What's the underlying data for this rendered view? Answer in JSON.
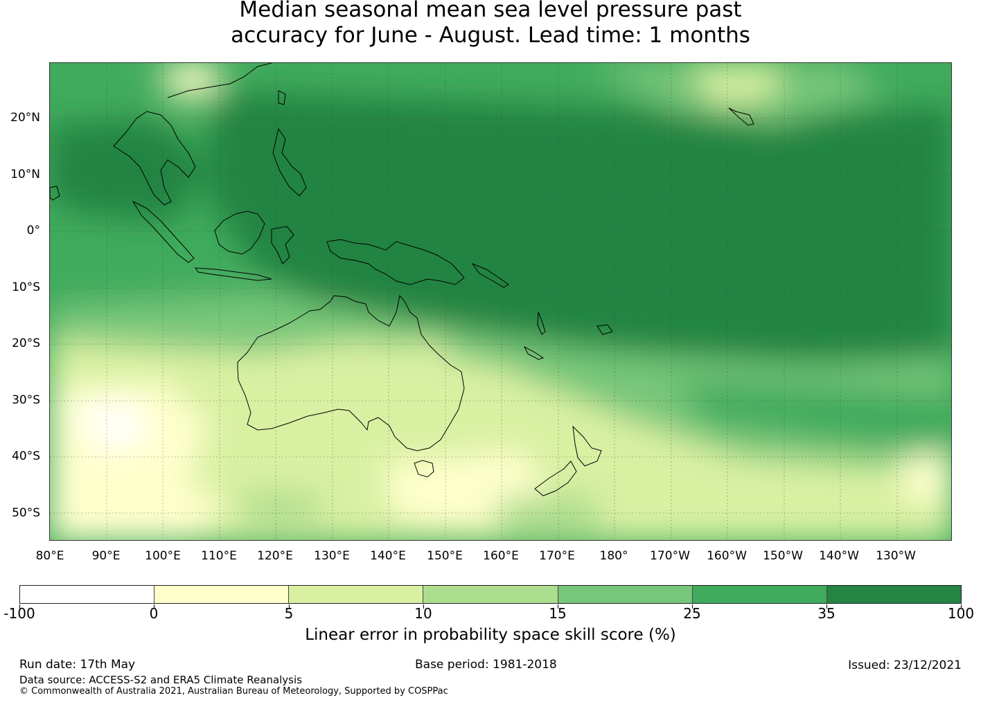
{
  "title_line1": "Median seasonal mean sea level pressure past",
  "title_line2": "accuracy for June - August. Lead time: 1 months",
  "lat_labels": [
    "20°N",
    "10°N",
    "0°",
    "10°S",
    "20°S",
    "30°S",
    "40°S",
    "50°S"
  ],
  "lon_labels": [
    "80°E",
    "90°E",
    "100°E",
    "110°E",
    "120°E",
    "130°E",
    "140°E",
    "150°E",
    "160°E",
    "170°E",
    "180°",
    "170°W",
    "160°W",
    "150°W",
    "140°W",
    "130°W"
  ],
  "colorbar": {
    "ticks": [
      "-100",
      "0",
      "5",
      "10",
      "15",
      "25",
      "35",
      "100"
    ],
    "colors": [
      "#ffffff",
      "#ffffcc",
      "#d9f0a3",
      "#addd8e",
      "#78c679",
      "#41ab5d",
      "#238443"
    ],
    "label": "Linear error in probability space skill score (%)"
  },
  "footer": {
    "run_date": "Run date: 17th May",
    "base_period": "Base period: 1981-2018",
    "issued": "Issued: 23/12/2021",
    "data_source": "Data source: ACCESS-S2 and ERA5 Climate Reanalysis",
    "copyright": "© Commonwealth of Australia 2021, Australian Bureau of Meteorology, Supported by COSPPac"
  }
}
